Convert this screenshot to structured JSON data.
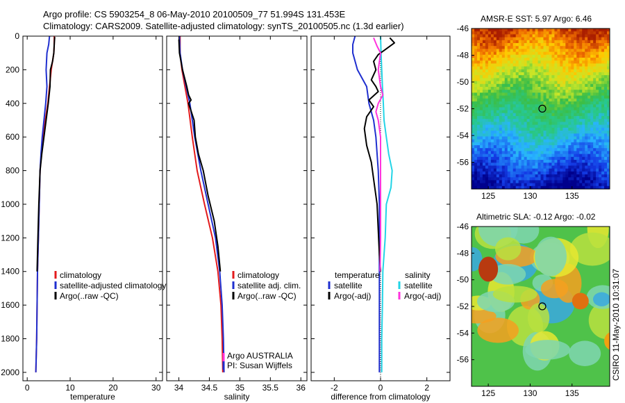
{
  "title_line1": "Argo profile: CS 5903254_8 06-May-2010 20100509_77 51.994S 131.453E",
  "title_line2": "Climatology: CARS2009. Satellite-adjusted climatology: synTS_20100505.nc (1.3d earlier)",
  "map1_title": "AMSR-E SST: 5.97 Argo: 6.46",
  "map2_title": "Altimetric SLA: -0.12 Argo: -0.02",
  "side_stamp": "CSIRO 11-May-2010 10:31:07",
  "chart_data": [
    {
      "type": "line",
      "id": "temperature",
      "xlabel": "temperature",
      "xlim": [
        -1,
        31.5
      ],
      "xticks": [
        0,
        10,
        20,
        30
      ],
      "ylim": [
        2050,
        0
      ],
      "yticks": [
        0,
        200,
        400,
        600,
        800,
        1000,
        1200,
        1400,
        1600,
        1800,
        2000
      ],
      "legend": {
        "position": "lower-right",
        "entries": [
          "climatology",
          "satellite-adjusted climatology",
          "Argo(..raw -QC)"
        ]
      },
      "series": [
        {
          "name": "climatology",
          "color": "#e31a1c",
          "points": [
            [
              6.3,
              0
            ],
            [
              6.3,
              50
            ],
            [
              6.2,
              100
            ],
            [
              5.6,
              200
            ],
            [
              5.2,
              300
            ],
            [
              4.8,
              400
            ],
            [
              4.2,
              500
            ],
            [
              3.7,
              600
            ],
            [
              3.3,
              700
            ],
            [
              3.0,
              800
            ],
            [
              2.8,
              1000
            ],
            [
              2.6,
              1200
            ],
            [
              2.4,
              1400
            ],
            [
              2.3,
              1600
            ],
            [
              2.2,
              1800
            ],
            [
              2.0,
              2000
            ]
          ]
        },
        {
          "name": "satellite-adjusted climatology",
          "color": "#1f2fcf",
          "points": [
            [
              5.2,
              0
            ],
            [
              5.0,
              50
            ],
            [
              4.6,
              100
            ],
            [
              4.4,
              200
            ],
            [
              4.6,
              300
            ],
            [
              4.3,
              400
            ],
            [
              3.9,
              500
            ],
            [
              3.5,
              600
            ],
            [
              3.2,
              700
            ],
            [
              3.0,
              800
            ],
            [
              2.8,
              1000
            ],
            [
              2.6,
              1200
            ],
            [
              2.4,
              1400
            ],
            [
              2.3,
              1600
            ],
            [
              2.2,
              1800
            ],
            [
              2.0,
              2000
            ]
          ]
        },
        {
          "name": "Argo(..raw -QC)",
          "color": "#000000",
          "points": [
            [
              6.4,
              5
            ],
            [
              6.3,
              50
            ],
            [
              6.2,
              100
            ],
            [
              5.9,
              150
            ],
            [
              5.4,
              200
            ],
            [
              5.3,
              300
            ],
            [
              4.9,
              400
            ],
            [
              4.4,
              500
            ],
            [
              3.9,
              600
            ],
            [
              3.4,
              700
            ],
            [
              3.0,
              800
            ],
            [
              2.7,
              1000
            ],
            [
              2.5,
              1200
            ],
            [
              2.3,
              1400
            ]
          ]
        }
      ]
    },
    {
      "type": "line",
      "id": "salinity",
      "xlabel": "salinity",
      "xlim": [
        33.8,
        36.1
      ],
      "xticks": [
        34,
        34.5,
        35,
        35.5,
        36
      ],
      "ylim": [
        2050,
        0
      ],
      "legend": {
        "position": "lower-right",
        "entries": [
          "climatology",
          "satellite adj. clim.",
          "Argo(..raw -QC)"
        ]
      },
      "annotation": [
        "Argo AUSTRALIA",
        "PI: Susan Wijffels"
      ],
      "series": [
        {
          "name": "climatology",
          "color": "#e31a1c",
          "points": [
            [
              34.02,
              0
            ],
            [
              34.02,
              100
            ],
            [
              34.05,
              200
            ],
            [
              34.1,
              300
            ],
            [
              34.15,
              400
            ],
            [
              34.22,
              600
            ],
            [
              34.3,
              800
            ],
            [
              34.42,
              1000
            ],
            [
              34.55,
              1200
            ],
            [
              34.64,
              1400
            ],
            [
              34.69,
              1600
            ],
            [
              34.71,
              1800
            ],
            [
              34.72,
              2000
            ]
          ]
        },
        {
          "name": "satellite adj. clim.",
          "color": "#1f2fcf",
          "points": [
            [
              34.01,
              0
            ],
            [
              34.02,
              100
            ],
            [
              34.06,
              200
            ],
            [
              34.12,
              300
            ],
            [
              34.18,
              400
            ],
            [
              34.26,
              600
            ],
            [
              34.36,
              800
            ],
            [
              34.48,
              1000
            ],
            [
              34.6,
              1200
            ],
            [
              34.67,
              1400
            ],
            [
              34.71,
              1600
            ],
            [
              34.73,
              1800
            ],
            [
              34.74,
              2000
            ]
          ]
        },
        {
          "name": "Argo(..raw -QC)",
          "color": "#000000",
          "points": [
            [
              34.0,
              20
            ],
            [
              34.01,
              100
            ],
            [
              34.06,
              200
            ],
            [
              34.13,
              300
            ],
            [
              34.16,
              350
            ],
            [
              34.2,
              380
            ],
            [
              34.16,
              400
            ],
            [
              34.25,
              500
            ],
            [
              34.27,
              600
            ],
            [
              34.32,
              700
            ],
            [
              34.4,
              800
            ],
            [
              34.48,
              950
            ],
            [
              34.58,
              1100
            ],
            [
              34.64,
              1250
            ],
            [
              34.68,
              1400
            ]
          ]
        }
      ]
    },
    {
      "type": "line",
      "id": "difference",
      "xlabel": "difference from climatology",
      "xlim": [
        -3,
        3
      ],
      "xticks": [
        -2,
        0,
        2
      ],
      "ylim": [
        2050,
        0
      ],
      "legend": {
        "position": "lower-right",
        "entries": [
          {
            "group": "temperature",
            "items": [
              "satellite",
              "Argo(-adj)"
            ]
          },
          {
            "group": "salinity",
            "items": [
              "satellite",
              "Argo(-adj)"
            ]
          }
        ]
      },
      "series": [
        {
          "name": "temperature satellite",
          "color": "#1f2fcf",
          "points": [
            [
              -1.1,
              0
            ],
            [
              -1.2,
              50
            ],
            [
              -1.2,
              100
            ],
            [
              -1.0,
              200
            ],
            [
              -0.6,
              300
            ],
            [
              -0.5,
              400
            ],
            [
              -0.3,
              500
            ],
            [
              -0.2,
              600
            ],
            [
              -0.1,
              800
            ],
            [
              -0.05,
              1000
            ],
            [
              -0.05,
              1400
            ],
            [
              -0.05,
              2000
            ]
          ]
        },
        {
          "name": "salinity satellite",
          "color": "#22d4e6",
          "points": [
            [
              0.0,
              0
            ],
            [
              0.02,
              100
            ],
            [
              0.05,
              200
            ],
            [
              0.08,
              300
            ],
            [
              0.12,
              400
            ],
            [
              0.15,
              500
            ],
            [
              0.25,
              600
            ],
            [
              0.35,
              700
            ],
            [
              0.5,
              800
            ],
            [
              0.45,
              900
            ],
            [
              0.25,
              1000
            ],
            [
              0.2,
              1200
            ],
            [
              0.1,
              1400
            ],
            [
              0.08,
              1600
            ],
            [
              0.05,
              1800
            ],
            [
              0.05,
              2000
            ]
          ]
        },
        {
          "name": "temperature Argo(-adj)",
          "color": "#000000",
          "points": [
            [
              0.4,
              10
            ],
            [
              0.6,
              40
            ],
            [
              0.2,
              80
            ],
            [
              -0.1,
              110
            ],
            [
              -0.3,
              150
            ],
            [
              -0.2,
              200
            ],
            [
              -0.4,
              260
            ],
            [
              -0.2,
              300
            ],
            [
              -0.1,
              330
            ],
            [
              -0.5,
              380
            ],
            [
              -0.3,
              420
            ],
            [
              -0.6,
              480
            ],
            [
              -0.7,
              550
            ],
            [
              -0.6,
              650
            ],
            [
              -0.4,
              750
            ],
            [
              -0.3,
              850
            ],
            [
              -0.15,
              1000
            ],
            [
              -0.05,
              1300
            ],
            [
              0.0,
              1400
            ]
          ]
        },
        {
          "name": "salinity Argo(-adj)",
          "color": "#ff33dd",
          "points": [
            [
              -0.3,
              10
            ],
            [
              -0.15,
              60
            ],
            [
              0.0,
              100
            ],
            [
              -0.1,
              200
            ],
            [
              0.0,
              300
            ],
            [
              0.1,
              350
            ],
            [
              -0.1,
              400
            ],
            [
              -0.2,
              450
            ],
            [
              -0.1,
              500
            ],
            [
              0.0,
              600
            ],
            [
              0.0,
              700
            ],
            [
              0.0,
              900
            ],
            [
              0.0,
              1000
            ],
            [
              0.0,
              1200
            ],
            [
              -0.02,
              1400
            ]
          ]
        }
      ]
    },
    {
      "type": "heatmap",
      "id": "sst-map",
      "title": "AMSR-E SST: 5.97 Argo: 6.46",
      "xlim": [
        123,
        139.5
      ],
      "ylim": [
        -58,
        -46
      ],
      "xticks": [
        125,
        130,
        135
      ],
      "yticks": [
        -46,
        -48,
        -50,
        -52,
        -54,
        -56
      ],
      "marker": {
        "lon": 131.453,
        "lat": -51.994
      }
    },
    {
      "type": "heatmap",
      "id": "sla-map",
      "title": "Altimetric SLA: -0.12 Argo: -0.02",
      "xlim": [
        123,
        139.5
      ],
      "ylim": [
        -58,
        -46
      ],
      "xticks": [
        125,
        130,
        135
      ],
      "yticks": [
        -46,
        -48,
        -50,
        -52,
        -54,
        -56
      ],
      "marker": {
        "lon": 131.453,
        "lat": -51.994
      }
    }
  ]
}
